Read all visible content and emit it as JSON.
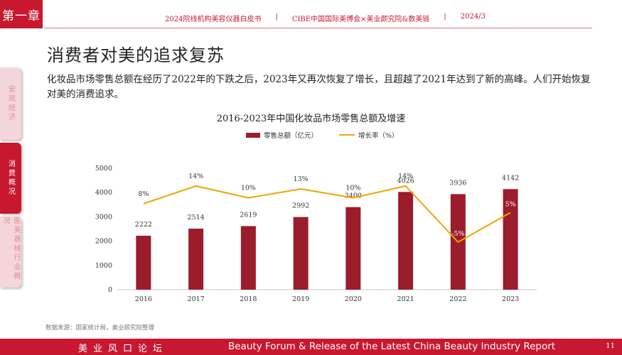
{
  "chapter": "第一章",
  "header": {
    "items": [
      "2024院线机构美容仪器白皮书",
      "CIBE中国国际美博会×美业颜究院&数美链",
      "2024/3"
    ],
    "separator": "|"
  },
  "title": "消费者对美的追求复苏",
  "description": "化妆品市场零售总额在经历了2022年的下跌之后，2023年又再次恢复了增长，且超越了2021年达到了新的高峰。人们开始恢复对美的消费追求。",
  "side_tabs": [
    "宏观经济",
    "消费概况",
    "医美器械行业概况"
  ],
  "chart_data": {
    "type": "bar",
    "title": "2016-2023年中国化妆品市场零售总额及增速",
    "categories": [
      "2016",
      "2017",
      "2018",
      "2019",
      "2020",
      "2021",
      "2022",
      "2023"
    ],
    "series": [
      {
        "name": "零售总额（亿元）",
        "type": "bar",
        "values": [
          2222,
          2514,
          2619,
          2992,
          3400,
          4026,
          3936,
          4142
        ],
        "labels": [
          "2222",
          "2514",
          "2619",
          "2992",
          "3400",
          "4026",
          "3936",
          "4142"
        ]
      },
      {
        "name": "增长率（%）",
        "type": "line",
        "values": [
          8,
          14,
          10,
          13,
          10,
          14,
          -5,
          5
        ],
        "labels": [
          "8%",
          "14%",
          "10%",
          "13%",
          "10%",
          "14%",
          "-5%",
          "5%"
        ]
      }
    ],
    "ylim": [
      0,
      5000
    ],
    "yticks": [
      "0",
      "1000",
      "2000",
      "3000",
      "4000",
      "5000"
    ],
    "growth_range": [
      -5,
      14
    ],
    "colors": {
      "bar": "#9b1c2a",
      "line": "#f2a300",
      "accent": "#c8182f"
    }
  },
  "source": "数据来源：国家统计局，美业颜究院整理",
  "footer": {
    "left": "美业风口论坛",
    "right": "Beauty Forum & Release of the Latest China Beauty Industry Report",
    "page": "11"
  }
}
